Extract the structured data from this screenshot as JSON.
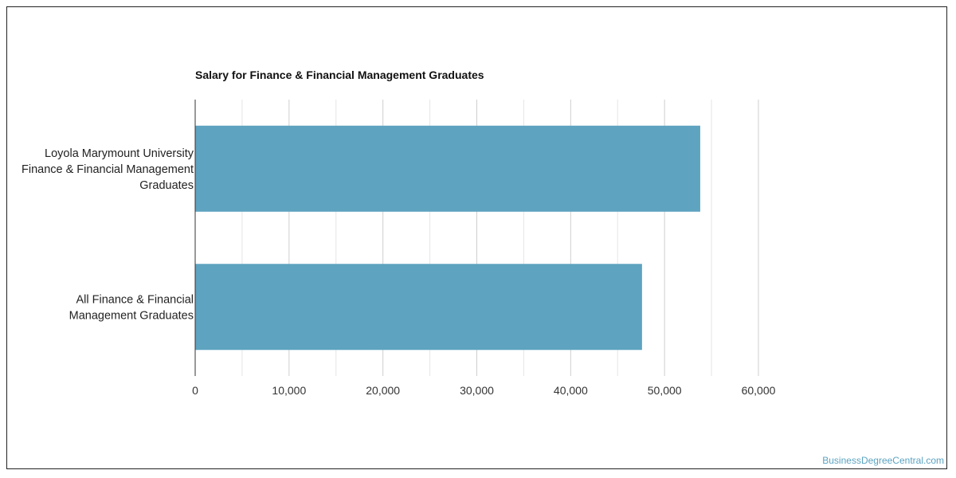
{
  "chart_data": {
    "type": "bar",
    "orientation": "horizontal",
    "title": "Salary for Finance & Financial Management Graduates",
    "categories": [
      [
        "Loyola Marymount University",
        "Finance & Financial Management",
        "Graduates"
      ],
      [
        "All Finance & Financial",
        "Management Graduates"
      ]
    ],
    "values": [
      53800,
      47600
    ],
    "xlim": [
      0,
      60000
    ],
    "xticks": [
      "0",
      "10,000",
      "20,000",
      "30,000",
      "40,000",
      "50,000",
      "60,000"
    ],
    "grid": true,
    "bar_color": "#5ea3c0"
  },
  "watermark": "BusinessDegreeCentral.com"
}
